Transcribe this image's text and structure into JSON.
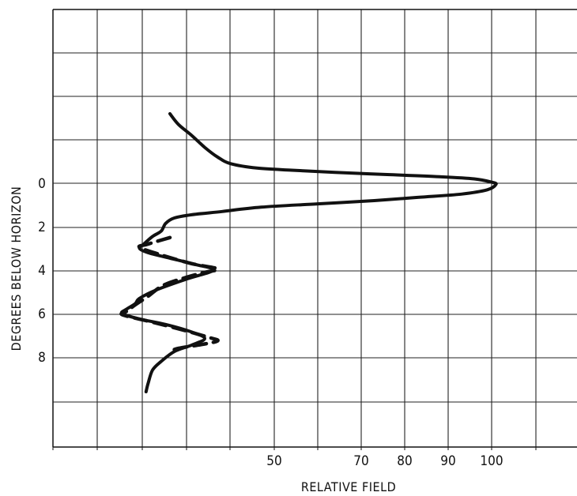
{
  "chart_data": {
    "type": "line",
    "title": "",
    "xlabel": "RELATIVE FIELD",
    "ylabel": "DEGREES BELOW HORIZON",
    "x_ticks": [
      "50",
      "70",
      "80",
      "90",
      "100"
    ],
    "y_ticks": [
      "0",
      "2",
      "4",
      "6",
      "8"
    ],
    "grid": true,
    "series": [
      {
        "style": "solid",
        "points": [
          [
            26,
            -3.2
          ],
          [
            28,
            -2.7
          ],
          [
            31,
            -2.2
          ],
          [
            34,
            -1.65
          ],
          [
            37,
            -1.2
          ],
          [
            40,
            -0.9
          ],
          [
            46,
            -0.7
          ],
          [
            54,
            -0.6
          ],
          [
            64,
            -0.5
          ],
          [
            76,
            -0.4
          ],
          [
            88,
            -0.3
          ],
          [
            96,
            -0.2
          ],
          [
            100,
            -0.05
          ],
          [
            101,
            0.05
          ],
          [
            99,
            0.3
          ],
          [
            93,
            0.5
          ],
          [
            83,
            0.65
          ],
          [
            73,
            0.8
          ],
          [
            60,
            0.95
          ],
          [
            47,
            1.1
          ],
          [
            38,
            1.3
          ],
          [
            31,
            1.45
          ],
          [
            27,
            1.6
          ],
          [
            25,
            1.85
          ],
          [
            24,
            2.2
          ],
          [
            22,
            2.45
          ],
          [
            20,
            2.8
          ],
          [
            19,
            3.0
          ],
          [
            21,
            3.2
          ],
          [
            26,
            3.45
          ],
          [
            32,
            3.75
          ],
          [
            36,
            4.0
          ],
          [
            30,
            4.4
          ],
          [
            23,
            4.9
          ],
          [
            19,
            5.3
          ],
          [
            18,
            5.55
          ],
          [
            16,
            5.8
          ],
          [
            15,
            6.0
          ],
          [
            19,
            6.25
          ],
          [
            25,
            6.5
          ],
          [
            31,
            6.85
          ],
          [
            34,
            7.15
          ],
          [
            31,
            7.45
          ],
          [
            27,
            7.75
          ],
          [
            24,
            8.2
          ],
          [
            22,
            8.6
          ],
          [
            21,
            9.2
          ],
          [
            20.5,
            9.6
          ]
        ]
      },
      {
        "style": "dashed",
        "points": [
          [
            26,
            2.5
          ],
          [
            21,
            2.8
          ],
          [
            19,
            2.95
          ],
          [
            24,
            3.3
          ],
          [
            31,
            3.7
          ],
          [
            37,
            3.95
          ],
          [
            33,
            4.15
          ],
          [
            25,
            4.65
          ],
          [
            21,
            5.2
          ],
          [
            18,
            5.6
          ],
          [
            16,
            5.9
          ],
          [
            15,
            6.05
          ],
          [
            20,
            6.3
          ],
          [
            27,
            6.65
          ],
          [
            35,
            7.1
          ],
          [
            37,
            7.25
          ],
          [
            34,
            7.4
          ],
          [
            28,
            7.6
          ],
          [
            26,
            7.75
          ]
        ]
      }
    ]
  }
}
